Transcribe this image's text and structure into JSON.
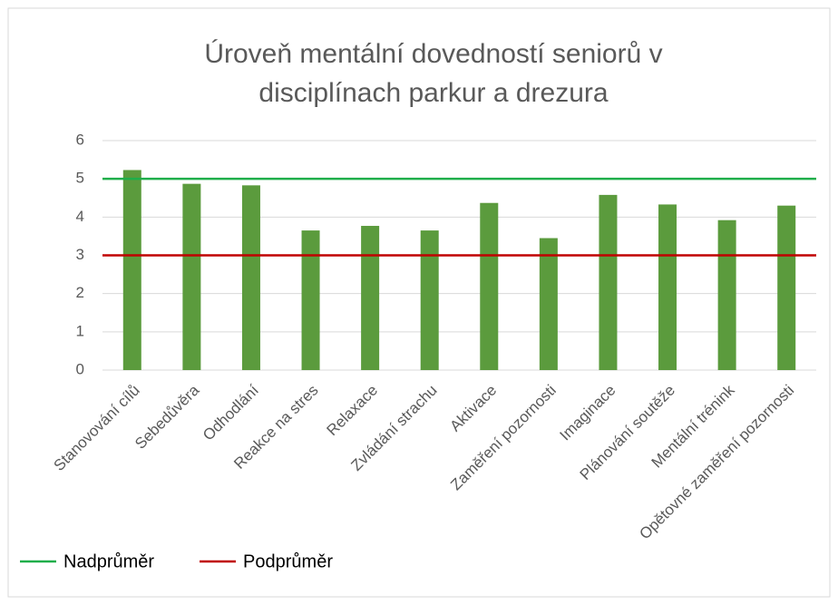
{
  "chart_data": {
    "type": "bar",
    "title": [
      "Úroveň mentální dovedností seniorů v",
      "disciplínach parkur a drezura"
    ],
    "categories": [
      "Stanovování cílů",
      "Sebedůvěra",
      "Odhodlání",
      "Reakce na stres",
      "Relaxace",
      "Zvládání strachu",
      "Aktivace",
      "Zaměření pozornosti",
      "Imaginace",
      "Plánování soutěže",
      "Mentální trénink",
      "Opětovné zaměření pozornosti"
    ],
    "series": [
      {
        "type": "bar",
        "color": "#5b9b3d",
        "values": [
          5.23,
          4.87,
          4.83,
          3.65,
          3.77,
          3.65,
          4.37,
          3.45,
          4.58,
          4.33,
          3.92,
          4.3
        ]
      },
      {
        "type": "line",
        "name": "Nadprůměr",
        "color": "#1fae4a",
        "values": [
          5,
          5,
          5,
          5,
          5,
          5,
          5,
          5,
          5,
          5,
          5,
          5
        ]
      },
      {
        "type": "line",
        "name": "Podprůměr",
        "color": "#c00000",
        "values": [
          3,
          3,
          3,
          3,
          3,
          3,
          3,
          3,
          3,
          3,
          3,
          3
        ]
      }
    ],
    "ylim": [
      0,
      6
    ],
    "yticks": [
      0,
      1,
      2,
      3,
      4,
      5,
      6
    ],
    "grid": true,
    "legend": "bottom"
  }
}
